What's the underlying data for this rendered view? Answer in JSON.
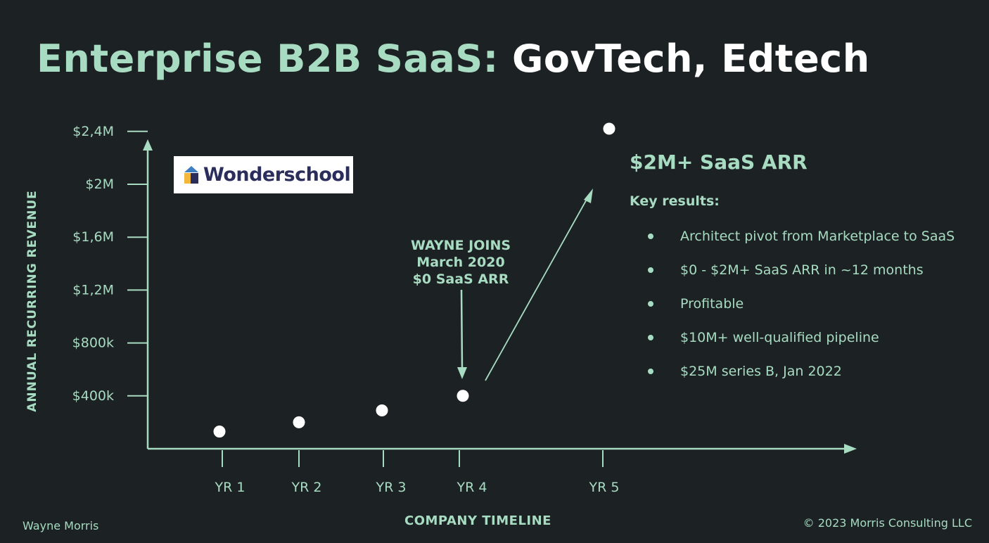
{
  "slide": {
    "title_part1": "Enterprise B2B SaaS:",
    "title_part2": "GovTech, Edtech",
    "logo_text": "Wonderschool",
    "annotation": [
      "WAYNE JOINS",
      "March 2020",
      "$0 SaaS ARR"
    ],
    "headline": "$2M+ SaaS ARR",
    "key_results_title": "Key results:",
    "key_results": [
      "Architect pivot from Marketplace to SaaS",
      "$0 - $2M+ SaaS ARR in ~12 months",
      "Profitable",
      "$10M+ well-qualified pipeline",
      "$25M series B, Jan 2022"
    ],
    "author": "Wayne Morris",
    "copyright": "© 2023 Morris Consulting LLC"
  },
  "colors": {
    "background": "#1c2123",
    "accent": "#a8dcc2",
    "point": "#ffffff",
    "logo_text": "#2b2e5b",
    "logo_icon_blue": "#3e7fc1",
    "logo_icon_yellow": "#f3b73b",
    "logo_icon_navy": "#2b2e5b"
  },
  "chart_data": {
    "type": "scatter",
    "xlabel": "COMPANY TIMELINE",
    "ylabel": "ANNUAL RECURRING REVENUE",
    "x_ticks": [
      "YR 1",
      "YR 2",
      "YR 3",
      "YR 4",
      "YR 5"
    ],
    "y_ticks": [
      "$400k",
      "$800k",
      "$1,2M",
      "$1,6M",
      "$2M",
      "$2,4M"
    ],
    "y_tick_values": [
      400000,
      800000,
      1200000,
      1600000,
      2000000,
      2400000
    ],
    "points": [
      {
        "x": "YR 1",
        "y": 130000
      },
      {
        "x": "YR 2",
        "y": 200000
      },
      {
        "x": "YR 3",
        "y": 290000
      },
      {
        "x": "YR 4",
        "y": 400000
      },
      {
        "x": "YR 5",
        "y": 2420000
      }
    ],
    "arrows": [
      {
        "from": "annotation",
        "to": "YR 4"
      },
      {
        "from": "YR 4",
        "to": "YR 5"
      }
    ],
    "grid": false
  }
}
